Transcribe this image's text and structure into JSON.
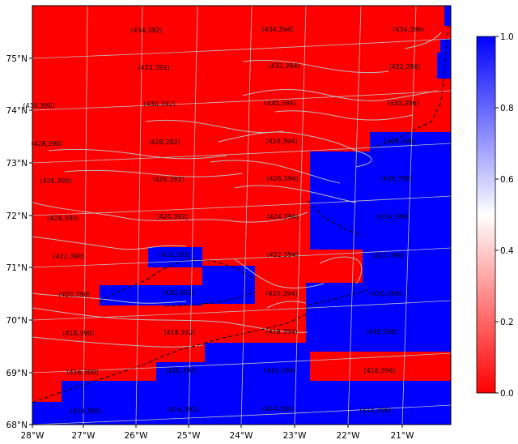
{
  "map": {
    "lon_ticks": [
      "28°W",
      "27°W",
      "26°W",
      "25°W",
      "24°W",
      "23°W",
      "22°W",
      "21°W"
    ],
    "lat_ticks": [
      "68°N",
      "69°N",
      "70°N",
      "71°N",
      "72°N",
      "73°N",
      "74°N",
      "75°N"
    ],
    "land_color": "#ff0000",
    "water_color": "#0000ff",
    "coast_color": "#bbbbbb",
    "grid_color": "#bfbfbf",
    "cell_labels": [
      "(434,392)",
      "(434,394)",
      "(434,396)",
      "(432,392)",
      "(432,394)",
      "(432,396)",
      "(430,390)",
      "(430,392)",
      "(430,394)",
      "(430,396)",
      "(428,390)",
      "(428,392)",
      "(428,394)",
      "(428,396)",
      "(426,390)",
      "(426,392)",
      "(426,394)",
      "(426,396)",
      "(424,390)",
      "(424,392)",
      "(424,394)",
      "(424,396)",
      "(422,390)",
      "(422,392)",
      "(422,394)",
      "(422,396)",
      "(420,390)",
      "(420,392)",
      "(420,394)",
      "(420,396)",
      "(418,390)",
      "(418,392)",
      "(418,394)",
      "(418,396)",
      "(416,390)",
      "(416,392)",
      "(416,394)",
      "(416,396)",
      "(414,390)",
      "(414,392)",
      "(414,394)",
      "(414,396)"
    ]
  },
  "colorbar": {
    "ticks": [
      "1.0",
      "0.8",
      "0.6",
      "0.4",
      "0.2",
      "0.0"
    ],
    "top_color": "#0000ff",
    "mid_color": "#ffffff",
    "bottom_color": "#ff0000"
  }
}
